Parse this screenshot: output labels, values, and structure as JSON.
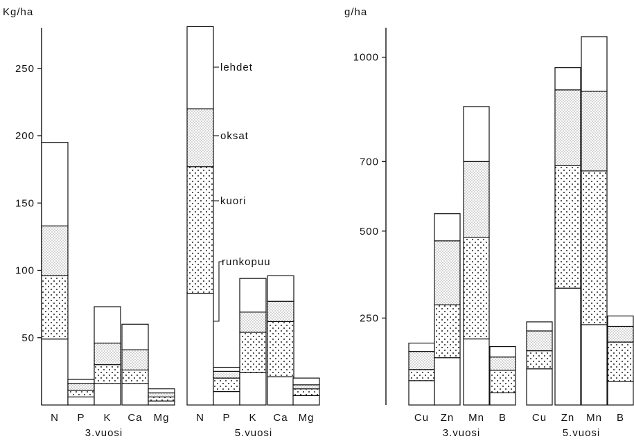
{
  "chart_data": [
    {
      "type": "bar",
      "stacked": true,
      "ylabel": "Kg/ha",
      "ylim": [
        0,
        280
      ],
      "yticks": [
        50,
        100,
        150,
        200,
        250
      ],
      "grid": false,
      "categories": [
        "N",
        "P",
        "K",
        "Ca",
        "Mg",
        "N",
        "P",
        "K",
        "Ca",
        "Mg"
      ],
      "groups": [
        {
          "label": "3.vuosi",
          "categories": [
            "N",
            "P",
            "K",
            "Ca",
            "Mg"
          ]
        },
        {
          "label": "5.vuosi",
          "categories": [
            "N",
            "P",
            "K",
            "Ca",
            "Mg"
          ]
        }
      ],
      "series": [
        {
          "name": "runkopuu",
          "values": [
            49,
            6,
            16,
            16,
            3,
            83,
            10,
            24,
            21,
            7
          ]
        },
        {
          "name": "kuori",
          "values": [
            47,
            5,
            14,
            10,
            3,
            94,
            10,
            30,
            41,
            5
          ]
        },
        {
          "name": "oksat",
          "values": [
            37,
            5,
            16,
            15,
            3,
            43,
            5,
            15,
            15,
            3
          ]
        },
        {
          "name": "lehdet",
          "values": [
            62,
            3,
            27,
            19,
            3,
            61,
            3,
            25,
            19,
            5
          ]
        }
      ],
      "totals": [
        195,
        19,
        73,
        60,
        12,
        281,
        28,
        94,
        96,
        20
      ],
      "annotations": [
        "lehdet",
        "oksat",
        "kuori",
        "runkopuu"
      ]
    },
    {
      "type": "bar",
      "stacked": true,
      "ylabel": "g/ha",
      "ylim": [
        0,
        1090
      ],
      "yticks": [
        250,
        500,
        700,
        1000
      ],
      "grid": false,
      "categories": [
        "Cu",
        "Zn",
        "Mn",
        "B",
        "Cu",
        "Zn",
        "Mn",
        "B"
      ],
      "groups": [
        {
          "label": "3.vuosi",
          "categories": [
            "Cu",
            "Zn",
            "Mn",
            "B"
          ]
        },
        {
          "label": "5.vuosi",
          "categories": [
            "Cu",
            "Zn",
            "Mn",
            "B"
          ]
        }
      ],
      "series": [
        {
          "name": "runkopuu",
          "values": [
            70,
            136,
            190,
            35,
            104,
            336,
            231,
            68
          ]
        },
        {
          "name": "kuori",
          "values": [
            32,
            152,
            292,
            65,
            52,
            352,
            442,
            113
          ]
        },
        {
          "name": "oksat",
          "values": [
            52,
            184,
            218,
            38,
            57,
            218,
            229,
            45
          ]
        },
        {
          "name": "lehdet",
          "values": [
            24,
            78,
            158,
            30,
            26,
            64,
            157,
            30
          ]
        }
      ],
      "totals": [
        178,
        550,
        858,
        168,
        239,
        970,
        1059,
        256
      ]
    }
  ]
}
